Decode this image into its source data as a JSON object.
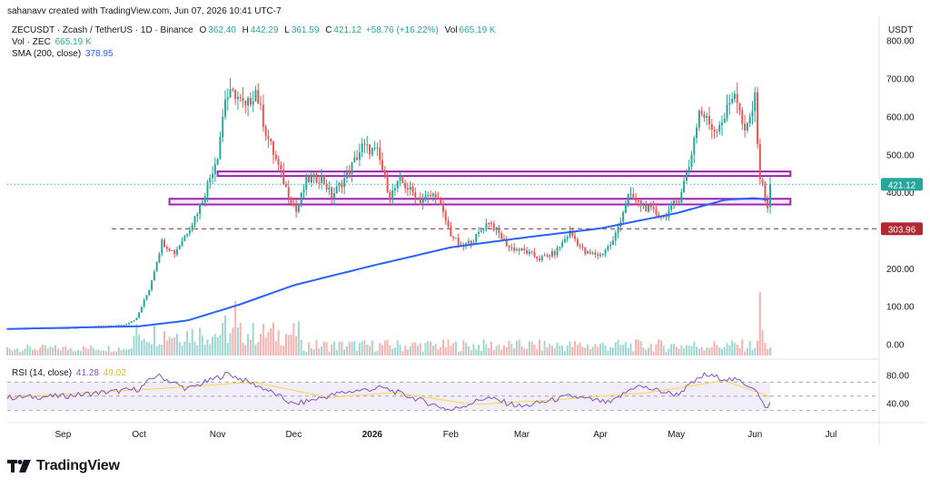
{
  "attribution": "sahanavv created with TradingView.com, Jun 07, 2026 10:41 UTC-7",
  "legend": {
    "symbol": "ZECUSDT · Zcash / TetherUS · 1D · Binance",
    "open_label": "O",
    "open": "362.40",
    "high_label": "H",
    "high": "442.29",
    "low_label": "L",
    "low": "361.59",
    "close_label": "C",
    "close": "421.12",
    "change": "+58.76 (+16.22%)",
    "vol_label": "Vol",
    "vol": "665.19 K",
    "vol_zec_label": "Vol · ZEC",
    "vol_zec": "665.19 K",
    "sma_label": "SMA (200, close)",
    "sma": "378.95"
  },
  "rsi_legend": {
    "label": "RSI (14, close)",
    "rsi": "41.28",
    "rsi_ma": "49.02"
  },
  "currency": "USDT",
  "logo_text": "TradingView",
  "colors": {
    "up": "#26a69a",
    "down": "#ef5350",
    "sma": "#2962ff",
    "rect": "#9c27b0",
    "rsi": "#7e57c2",
    "rsi_ma": "#f9d749",
    "price_tag": "#26a69a",
    "level_tag": "#b22833"
  },
  "chart_data": {
    "type": "candlestick",
    "title": "ZECUSDT · Zcash / TetherUS · 1D · Binance",
    "price_axis": {
      "ticks": [
        "800.00",
        "700.00",
        "600.00",
        "500.00",
        "400.00",
        "300.00",
        "200.00",
        "100.00",
        "0.00"
      ],
      "ylim": [
        -30,
        840
      ]
    },
    "x_axis": {
      "labels": [
        "Sep",
        "Oct",
        "Nov",
        "Dec",
        "2026",
        "Feb",
        "Mar",
        "Apr",
        "May",
        "Jun",
        "Jul"
      ],
      "range": [
        "2025-08-10",
        "2026-07-20"
      ]
    },
    "price_tags": [
      {
        "label": "421.12",
        "value": 421.12,
        "color": "up"
      },
      {
        "label": "303.96",
        "value": 303.96,
        "color": "level"
      }
    ],
    "horizontal_line": {
      "value": 303.96,
      "style": "dashed"
    },
    "zones": [
      {
        "from": "2025-11-01",
        "to": "2026-06-15",
        "low": 443,
        "high": 455
      },
      {
        "from": "2025-10-13",
        "to": "2026-06-15",
        "low": 368,
        "high": 383
      }
    ],
    "ohlc_anchors": [
      {
        "date": "2025-08-10",
        "close": 40
      },
      {
        "date": "2025-09-01",
        "close": 42
      },
      {
        "date": "2025-09-25",
        "close": 50
      },
      {
        "date": "2025-09-30",
        "close": 68
      },
      {
        "date": "2025-10-05",
        "close": 145
      },
      {
        "date": "2025-10-10",
        "close": 270
      },
      {
        "date": "2025-10-15",
        "close": 240
      },
      {
        "date": "2025-10-22",
        "close": 320
      },
      {
        "date": "2025-10-26",
        "close": 380
      },
      {
        "date": "2025-11-01",
        "close": 500
      },
      {
        "date": "2025-11-04",
        "close": 650
      },
      {
        "date": "2025-11-08",
        "close": 660
      },
      {
        "date": "2025-11-12",
        "close": 620
      },
      {
        "date": "2025-11-16",
        "close": 670
      },
      {
        "date": "2025-11-20",
        "close": 560
      },
      {
        "date": "2025-11-28",
        "close": 410
      },
      {
        "date": "2025-12-02",
        "close": 350
      },
      {
        "date": "2025-12-06",
        "close": 430
      },
      {
        "date": "2025-12-12",
        "close": 440
      },
      {
        "date": "2025-12-16",
        "close": 390
      },
      {
        "date": "2025-12-22",
        "close": 445
      },
      {
        "date": "2025-12-28",
        "close": 520
      },
      {
        "date": "2026-01-03",
        "close": 505
      },
      {
        "date": "2026-01-08",
        "close": 390
      },
      {
        "date": "2026-01-12",
        "close": 430
      },
      {
        "date": "2026-01-20",
        "close": 380
      },
      {
        "date": "2026-01-26",
        "close": 395
      },
      {
        "date": "2026-02-01",
        "close": 290
      },
      {
        "date": "2026-02-05",
        "close": 255
      },
      {
        "date": "2026-02-10",
        "close": 275
      },
      {
        "date": "2026-02-16",
        "close": 325
      },
      {
        "date": "2026-02-24",
        "close": 255
      },
      {
        "date": "2026-03-02",
        "close": 245
      },
      {
        "date": "2026-03-08",
        "close": 225
      },
      {
        "date": "2026-03-14",
        "close": 240
      },
      {
        "date": "2026-03-20",
        "close": 295
      },
      {
        "date": "2026-03-26",
        "close": 240
      },
      {
        "date": "2026-04-01",
        "close": 235
      },
      {
        "date": "2026-04-06",
        "close": 270
      },
      {
        "date": "2026-04-12",
        "close": 390
      },
      {
        "date": "2026-04-20",
        "close": 355
      },
      {
        "date": "2026-04-26",
        "close": 335
      },
      {
        "date": "2026-05-02",
        "close": 385
      },
      {
        "date": "2026-05-06",
        "close": 470
      },
      {
        "date": "2026-05-10",
        "close": 615
      },
      {
        "date": "2026-05-16",
        "close": 565
      },
      {
        "date": "2026-05-20",
        "close": 600
      },
      {
        "date": "2026-05-24",
        "close": 670
      },
      {
        "date": "2026-05-28",
        "close": 550
      },
      {
        "date": "2026-06-01",
        "close": 645
      },
      {
        "date": "2026-06-03",
        "close": 440
      },
      {
        "date": "2026-06-06",
        "close": 362
      },
      {
        "date": "2026-06-07",
        "close": 421
      }
    ],
    "sma_200_anchors": [
      {
        "date": "2025-08-10",
        "value": 40
      },
      {
        "date": "2025-10-01",
        "value": 47
      },
      {
        "date": "2025-10-20",
        "value": 62
      },
      {
        "date": "2025-11-10",
        "value": 105
      },
      {
        "date": "2025-12-01",
        "value": 155
      },
      {
        "date": "2025-12-31",
        "value": 205
      },
      {
        "date": "2026-02-01",
        "value": 255
      },
      {
        "date": "2026-03-01",
        "value": 280
      },
      {
        "date": "2026-04-01",
        "value": 305
      },
      {
        "date": "2026-05-01",
        "value": 345
      },
      {
        "date": "2026-05-20",
        "value": 380
      },
      {
        "date": "2026-06-01",
        "value": 385
      },
      {
        "date": "2026-06-07",
        "value": 378.95
      }
    ],
    "volume_bars": "relative heights only; peak on 2026-06-03",
    "rsi": {
      "name": "RSI (14, close)",
      "ticks": [
        "80.00",
        "40.00"
      ],
      "ylim": [
        15,
        100
      ],
      "bands": [
        70,
        30
      ],
      "anchors": [
        {
          "date": "2025-08-10",
          "value": 48
        },
        {
          "date": "2025-09-01",
          "value": 50
        },
        {
          "date": "2025-10-01",
          "value": 60
        },
        {
          "date": "2025-10-08",
          "value": 80
        },
        {
          "date": "2025-10-20",
          "value": 60
        },
        {
          "date": "2025-11-05",
          "value": 82
        },
        {
          "date": "2025-11-20",
          "value": 60
        },
        {
          "date": "2025-12-01",
          "value": 38
        },
        {
          "date": "2025-12-20",
          "value": 55
        },
        {
          "date": "2026-01-05",
          "value": 62
        },
        {
          "date": "2026-02-01",
          "value": 30
        },
        {
          "date": "2026-02-15",
          "value": 48
        },
        {
          "date": "2026-03-01",
          "value": 35
        },
        {
          "date": "2026-03-20",
          "value": 50
        },
        {
          "date": "2026-04-05",
          "value": 40
        },
        {
          "date": "2026-04-15",
          "value": 65
        },
        {
          "date": "2026-05-01",
          "value": 52
        },
        {
          "date": "2026-05-12",
          "value": 80
        },
        {
          "date": "2026-05-25",
          "value": 72
        },
        {
          "date": "2026-06-01",
          "value": 62
        },
        {
          "date": "2026-06-05",
          "value": 32
        },
        {
          "date": "2026-06-07",
          "value": 41.28
        }
      ],
      "ma_anchors": [
        {
          "date": "2025-08-10",
          "value": 48
        },
        {
          "date": "2025-10-15",
          "value": 62
        },
        {
          "date": "2025-11-15",
          "value": 70
        },
        {
          "date": "2025-12-15",
          "value": 48
        },
        {
          "date": "2026-01-10",
          "value": 55
        },
        {
          "date": "2026-02-10",
          "value": 38
        },
        {
          "date": "2026-03-15",
          "value": 45
        },
        {
          "date": "2026-04-20",
          "value": 55
        },
        {
          "date": "2026-05-20",
          "value": 72
        },
        {
          "date": "2026-06-07",
          "value": 49.02
        }
      ]
    }
  }
}
